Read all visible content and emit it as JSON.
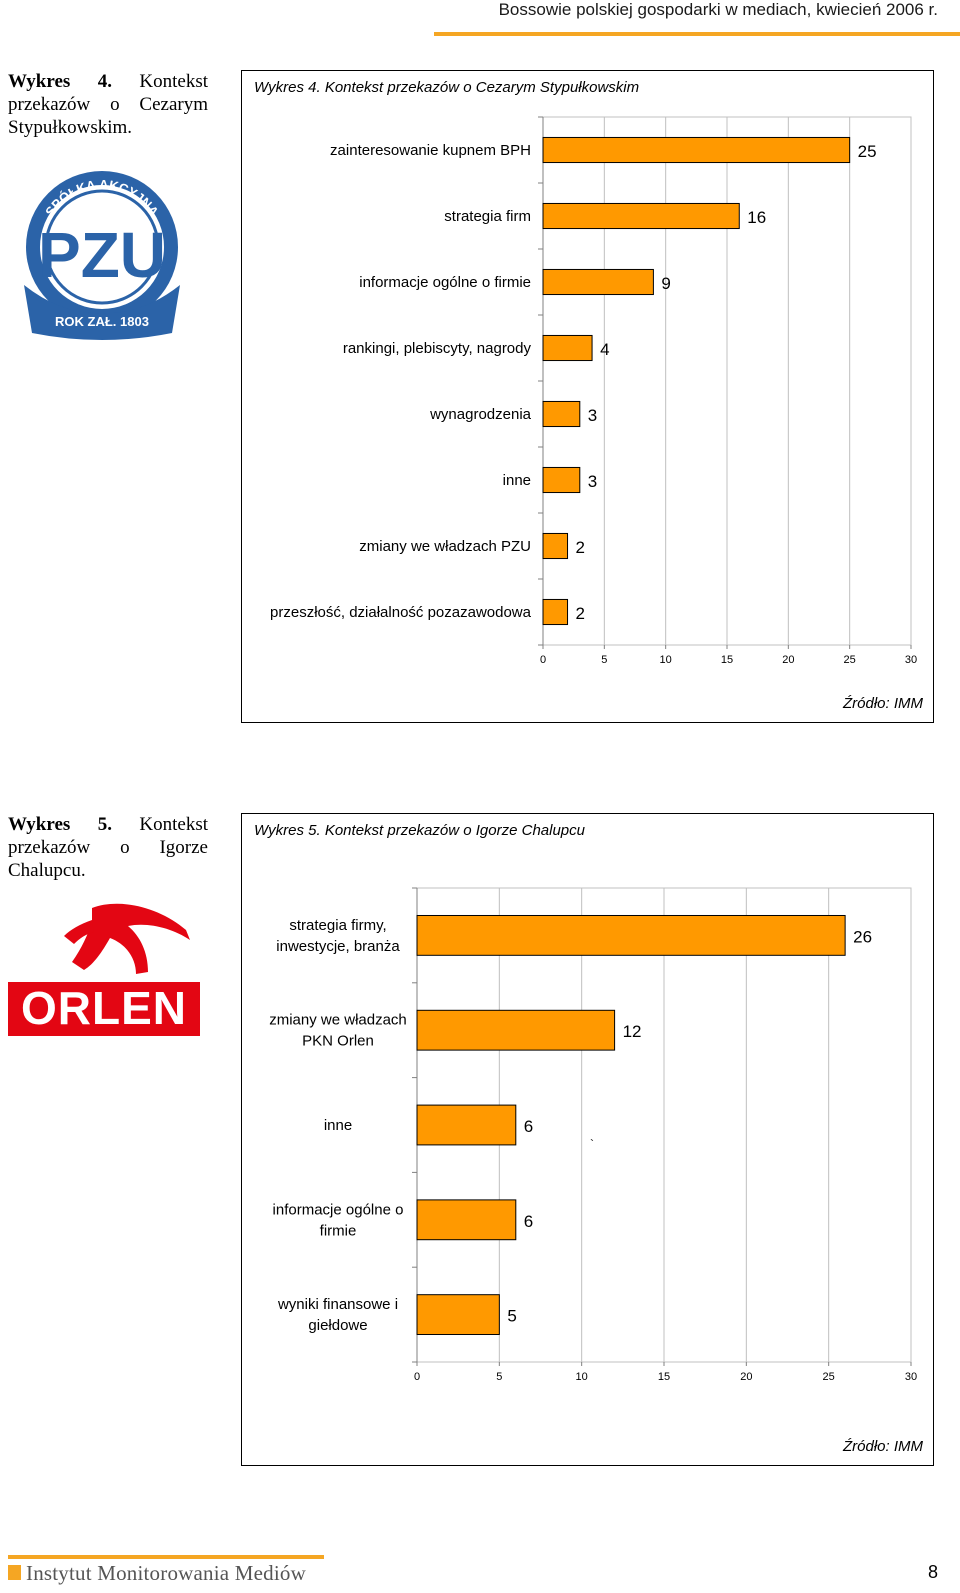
{
  "header": {
    "title": "Bossowie polskiej gospodarki w mediach, kwiecień 2006 r."
  },
  "section4": {
    "caption_bold": "Wykres 4.",
    "caption_rest": " Kontekst przekazów o Cezarym Stypułkowskim.",
    "logo": {
      "ring_text": "SPÓŁKA AKCYJNA",
      "letters": "PZU",
      "ribbon_text": "ROK ZAŁ. 1803",
      "color": "#2b63a8"
    }
  },
  "section5": {
    "caption_bold": "Wykres 5.",
    "caption_rest": " Kontekst przekazów o Igorze Chalupcu.",
    "logo": {
      "text": "ORLEN",
      "color": "#e30613"
    }
  },
  "chart_data": [
    {
      "type": "bar",
      "orientation": "horizontal",
      "title": "Wykres 4. Kontekst przekazów o Cezarym Stypułkowskim",
      "categories": [
        "zainteresowanie kupnem BPH",
        "strategia firm",
        "informacje ogólne o firmie",
        "rankingi, plebiscyty, nagrody",
        "wynagrodzenia",
        "inne",
        "zmiany we władzach PZU",
        "przeszłość, działalność pozazawodowa"
      ],
      "values": [
        25,
        16,
        9,
        4,
        3,
        3,
        2,
        2
      ],
      "value_labels": [
        "25",
        "16",
        "9",
        "4",
        "3",
        "3",
        "2",
        "2"
      ],
      "xlim": [
        0,
        30
      ],
      "xticks": [
        "0",
        "5",
        "10",
        "15",
        "20",
        "25",
        "30"
      ],
      "grid": true,
      "bar_color": "#ff9900",
      "source": "Źródło: IMM"
    },
    {
      "type": "bar",
      "orientation": "horizontal",
      "title": "Wykres 5. Kontekst przekazów o Igorze Chalupcu",
      "categories": [
        [
          "strategia firmy,",
          "inwestycje, branża"
        ],
        [
          "zmiany we władzach",
          "PKN Orlen"
        ],
        [
          "inne"
        ],
        [
          "informacje ogólne o",
          "firmie"
        ],
        [
          "wyniki finansowe i",
          "giełdowe"
        ]
      ],
      "values": [
        26,
        12,
        6,
        6,
        5
      ],
      "value_labels": [
        "26",
        "12",
        "6",
        "6",
        "5"
      ],
      "xlim": [
        0,
        30
      ],
      "xticks": [
        "0",
        "5",
        "10",
        "15",
        "20",
        "25",
        "30"
      ],
      "grid": true,
      "bar_color": "#ff9900",
      "stray_mark": "`",
      "source": "Źródło: IMM"
    }
  ],
  "footer": {
    "org": "Instytut Monitorowania Mediów",
    "page": "8"
  }
}
